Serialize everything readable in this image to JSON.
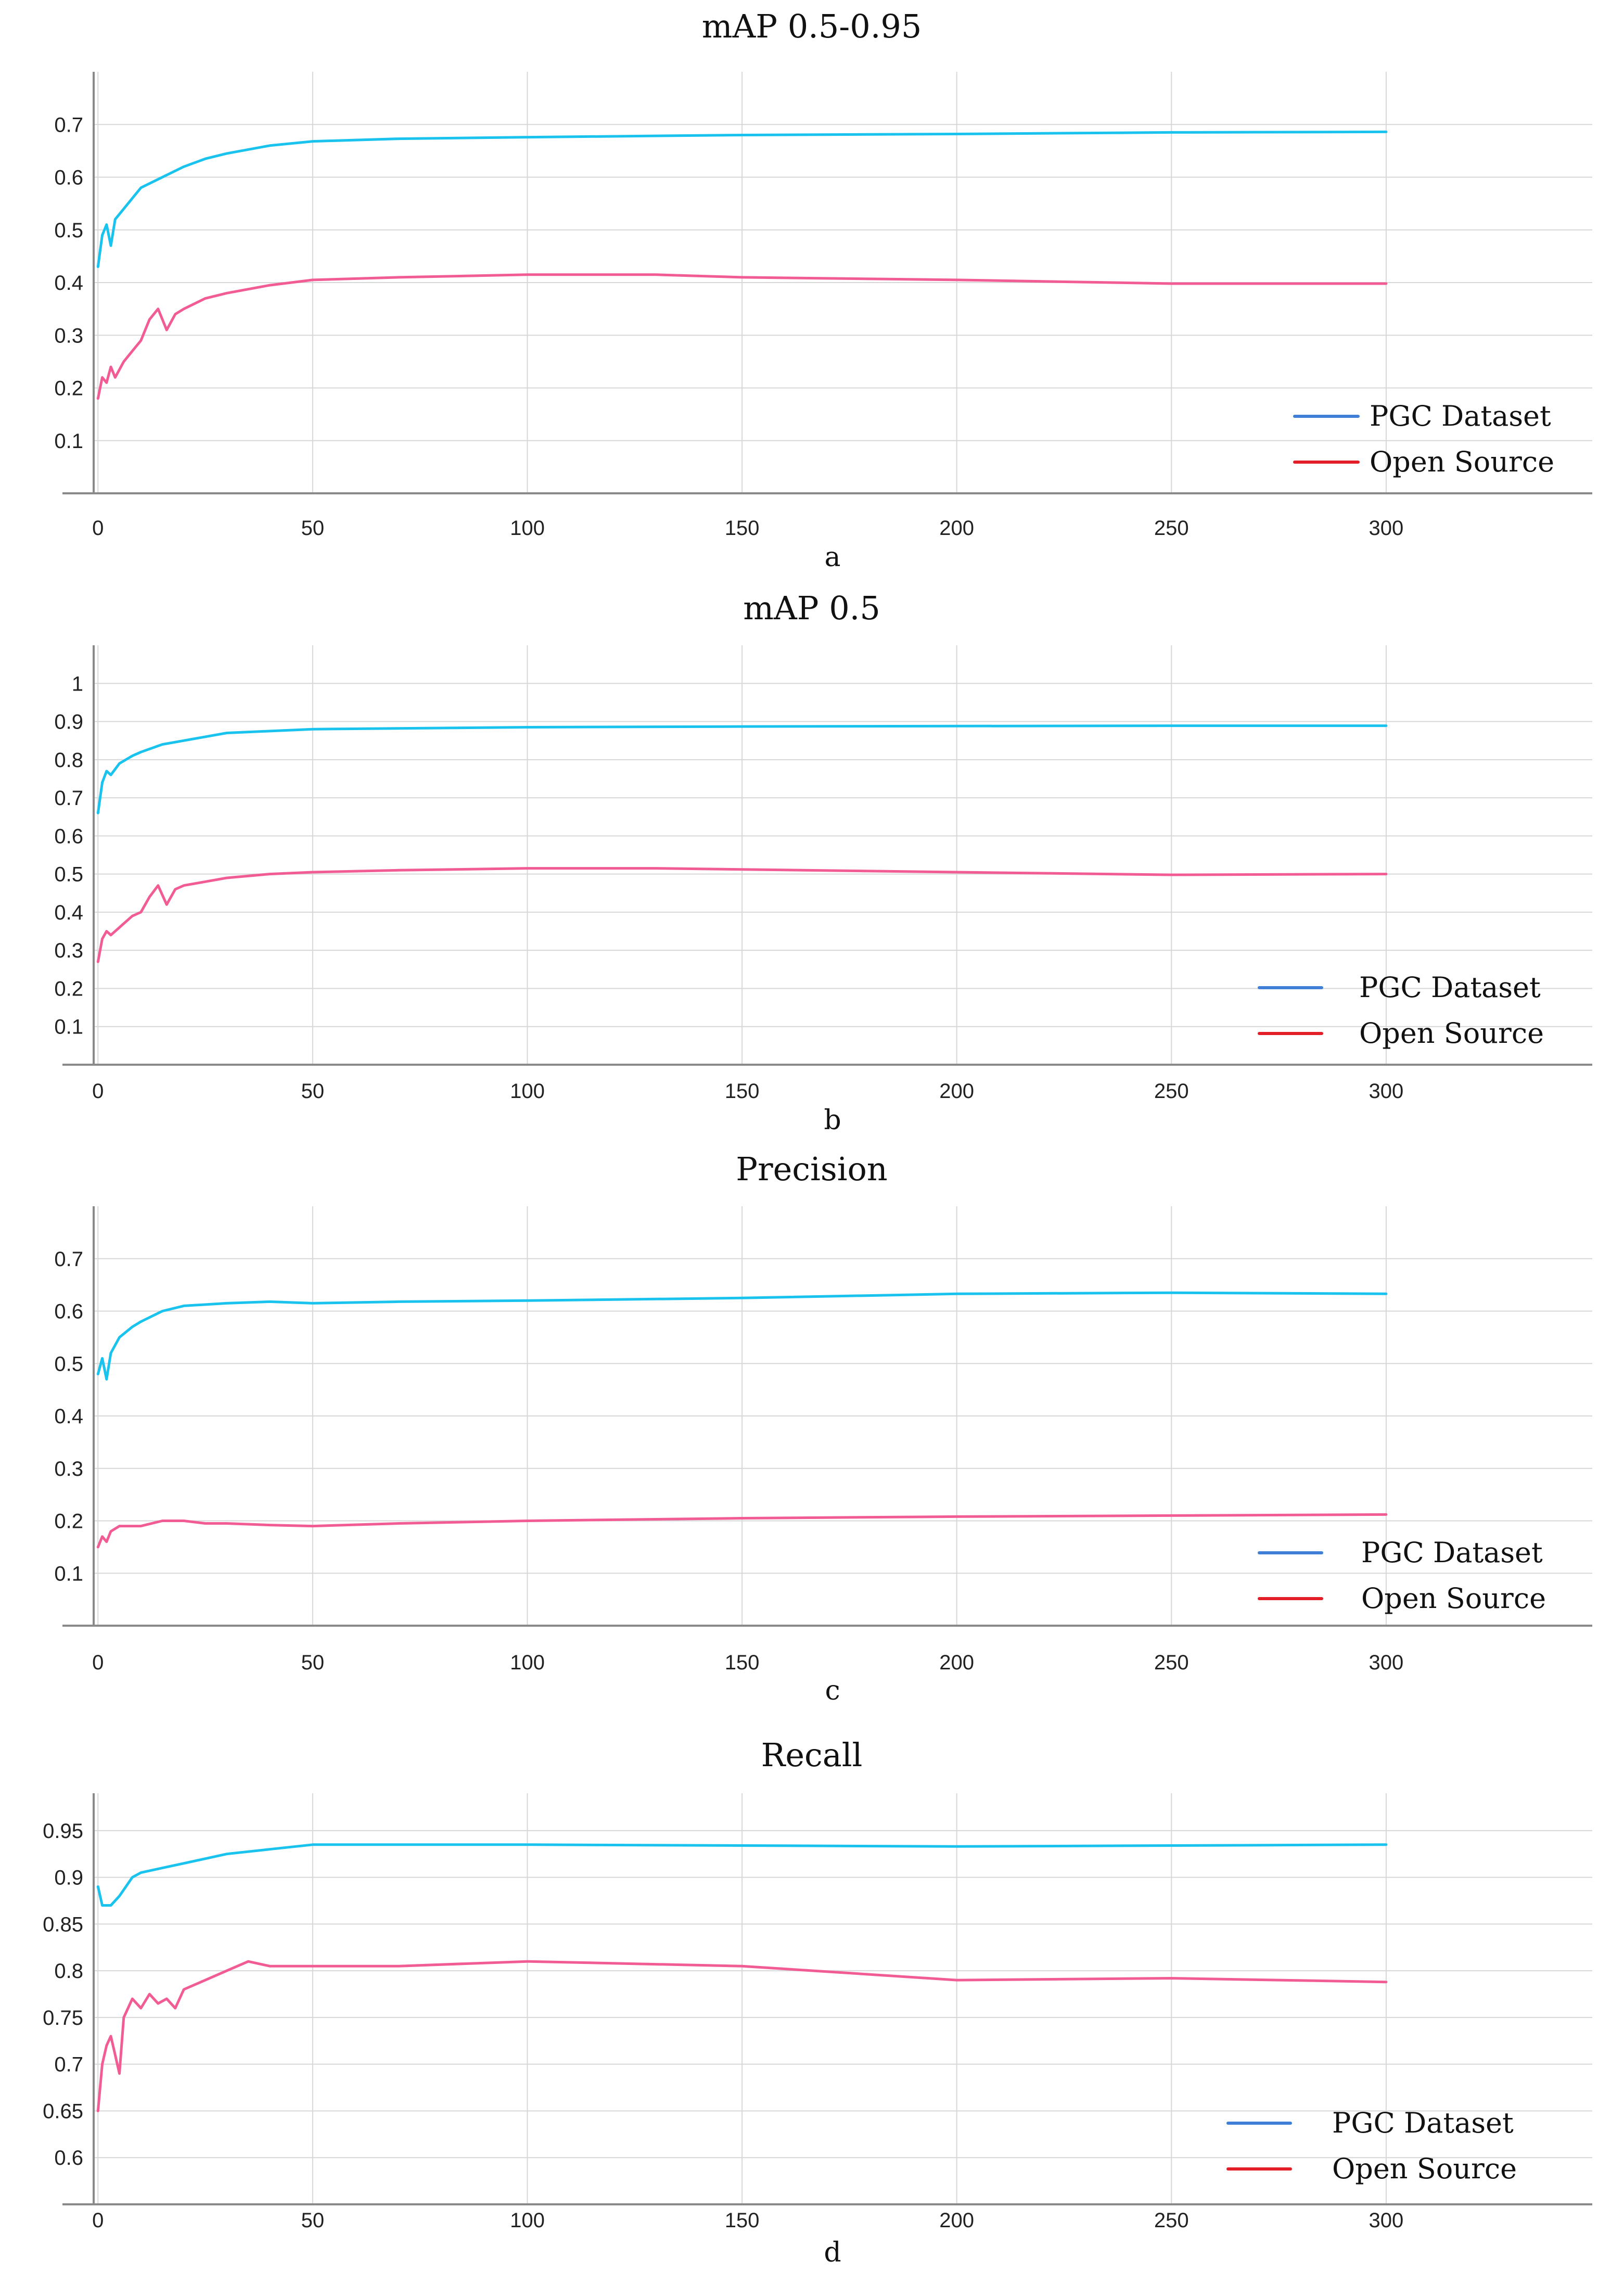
{
  "figure": {
    "panels": [
      "a",
      "b",
      "c",
      "d"
    ]
  },
  "chart_data": [
    {
      "type": "line",
      "title": "mAP 0.5-0.95",
      "sublabel": "a",
      "x_ticks": [
        0,
        50,
        100,
        150,
        200,
        250,
        300
      ],
      "y_ticks": [
        0.1,
        0.2,
        0.3,
        0.4,
        0.5,
        0.6,
        0.7
      ],
      "y_tick_labels": [
        "0.1",
        "0.2",
        "0.3",
        "0.4",
        "0.5",
        "0.6",
        "0.7"
      ],
      "xlim": [
        -1,
        348
      ],
      "ylim": [
        0.0,
        0.8
      ],
      "legend": [
        "PGC Dataset",
        "Open Source"
      ],
      "legend_colors": [
        "#3f7fd8",
        "#e41e26"
      ],
      "series": [
        {
          "name": "PGC Dataset",
          "color": "#19c3ee",
          "points": [
            [
              0,
              0.43
            ],
            [
              1,
              0.49
            ],
            [
              2,
              0.51
            ],
            [
              3,
              0.47
            ],
            [
              4,
              0.52
            ],
            [
              6,
              0.54
            ],
            [
              8,
              0.56
            ],
            [
              10,
              0.58
            ],
            [
              15,
              0.6
            ],
            [
              20,
              0.62
            ],
            [
              25,
              0.635
            ],
            [
              30,
              0.645
            ],
            [
              40,
              0.66
            ],
            [
              50,
              0.668
            ],
            [
              70,
              0.673
            ],
            [
              100,
              0.676
            ],
            [
              150,
              0.68
            ],
            [
              200,
              0.682
            ],
            [
              250,
              0.685
            ],
            [
              300,
              0.686
            ]
          ]
        },
        {
          "name": "Open Source",
          "color": "#f25c94",
          "points": [
            [
              0,
              0.18
            ],
            [
              1,
              0.22
            ],
            [
              2,
              0.21
            ],
            [
              3,
              0.24
            ],
            [
              4,
              0.22
            ],
            [
              6,
              0.25
            ],
            [
              8,
              0.27
            ],
            [
              10,
              0.29
            ],
            [
              12,
              0.33
            ],
            [
              14,
              0.35
            ],
            [
              16,
              0.31
            ],
            [
              18,
              0.34
            ],
            [
              20,
              0.35
            ],
            [
              25,
              0.37
            ],
            [
              30,
              0.38
            ],
            [
              40,
              0.395
            ],
            [
              50,
              0.405
            ],
            [
              70,
              0.41
            ],
            [
              100,
              0.415
            ],
            [
              130,
              0.415
            ],
            [
              150,
              0.41
            ],
            [
              200,
              0.405
            ],
            [
              250,
              0.398
            ],
            [
              300,
              0.398
            ]
          ]
        }
      ]
    },
    {
      "type": "line",
      "title": "mAP 0.5",
      "sublabel": "b",
      "x_ticks": [
        0,
        50,
        100,
        150,
        200,
        250,
        300
      ],
      "y_ticks": [
        0.1,
        0.2,
        0.3,
        0.4,
        0.5,
        0.6,
        0.7,
        0.8,
        0.9,
        1.0
      ],
      "y_tick_labels": [
        "0.1",
        "0.2",
        "0.3",
        "0.4",
        "0.5",
        "0.6",
        "0.7",
        "0.8",
        "0.9",
        "1"
      ],
      "xlim": [
        -1,
        348
      ],
      "ylim": [
        0.0,
        1.1
      ],
      "legend": [
        "PGC Dataset",
        "Open Source"
      ],
      "legend_colors": [
        "#3f7fd8",
        "#e41e26"
      ],
      "series": [
        {
          "name": "PGC Dataset",
          "color": "#19c3ee",
          "points": [
            [
              0,
              0.66
            ],
            [
              1,
              0.74
            ],
            [
              2,
              0.77
            ],
            [
              3,
              0.76
            ],
            [
              5,
              0.79
            ],
            [
              8,
              0.81
            ],
            [
              10,
              0.82
            ],
            [
              15,
              0.84
            ],
            [
              20,
              0.85
            ],
            [
              30,
              0.87
            ],
            [
              40,
              0.875
            ],
            [
              50,
              0.88
            ],
            [
              100,
              0.885
            ],
            [
              150,
              0.887
            ],
            [
              200,
              0.888
            ],
            [
              250,
              0.889
            ],
            [
              300,
              0.889
            ]
          ]
        },
        {
          "name": "Open Source",
          "color": "#f25c94",
          "points": [
            [
              0,
              0.27
            ],
            [
              1,
              0.33
            ],
            [
              2,
              0.35
            ],
            [
              3,
              0.34
            ],
            [
              5,
              0.36
            ],
            [
              8,
              0.39
            ],
            [
              10,
              0.4
            ],
            [
              12,
              0.44
            ],
            [
              14,
              0.47
            ],
            [
              16,
              0.42
            ],
            [
              18,
              0.46
            ],
            [
              20,
              0.47
            ],
            [
              25,
              0.48
            ],
            [
              30,
              0.49
            ],
            [
              40,
              0.5
            ],
            [
              50,
              0.505
            ],
            [
              70,
              0.51
            ],
            [
              100,
              0.515
            ],
            [
              130,
              0.515
            ],
            [
              150,
              0.512
            ],
            [
              200,
              0.505
            ],
            [
              250,
              0.498
            ],
            [
              300,
              0.5
            ]
          ]
        }
      ]
    },
    {
      "type": "line",
      "title": "Precision",
      "sublabel": "c",
      "x_ticks": [
        0,
        50,
        100,
        150,
        200,
        250,
        300
      ],
      "y_ticks": [
        0.1,
        0.2,
        0.3,
        0.4,
        0.5,
        0.6,
        0.7
      ],
      "y_tick_labels": [
        "0.1",
        "0.2",
        "0.3",
        "0.4",
        "0.5",
        "0.6",
        "0.7"
      ],
      "xlim": [
        -1,
        348
      ],
      "ylim": [
        0.0,
        0.8
      ],
      "legend": [
        "PGC Dataset",
        "Open Source"
      ],
      "legend_colors": [
        "#3f7fd8",
        "#e41e26"
      ],
      "series": [
        {
          "name": "PGC Dataset",
          "color": "#19c3ee",
          "points": [
            [
              0,
              0.48
            ],
            [
              1,
              0.51
            ],
            [
              2,
              0.47
            ],
            [
              3,
              0.52
            ],
            [
              5,
              0.55
            ],
            [
              8,
              0.57
            ],
            [
              10,
              0.58
            ],
            [
              15,
              0.6
            ],
            [
              20,
              0.61
            ],
            [
              30,
              0.615
            ],
            [
              40,
              0.618
            ],
            [
              50,
              0.615
            ],
            [
              70,
              0.618
            ],
            [
              100,
              0.62
            ],
            [
              150,
              0.625
            ],
            [
              200,
              0.633
            ],
            [
              250,
              0.635
            ],
            [
              300,
              0.633
            ]
          ]
        },
        {
          "name": "Open Source",
          "color": "#f25c94",
          "points": [
            [
              0,
              0.15
            ],
            [
              1,
              0.17
            ],
            [
              2,
              0.16
            ],
            [
              3,
              0.18
            ],
            [
              5,
              0.19
            ],
            [
              10,
              0.19
            ],
            [
              15,
              0.2
            ],
            [
              20,
              0.2
            ],
            [
              25,
              0.195
            ],
            [
              30,
              0.195
            ],
            [
              40,
              0.192
            ],
            [
              50,
              0.19
            ],
            [
              70,
              0.195
            ],
            [
              100,
              0.2
            ],
            [
              150,
              0.205
            ],
            [
              200,
              0.208
            ],
            [
              250,
              0.21
            ],
            [
              300,
              0.212
            ]
          ]
        }
      ]
    },
    {
      "type": "line",
      "title": "Recall",
      "sublabel": "d",
      "x_ticks": [
        0,
        50,
        100,
        150,
        200,
        250,
        300
      ],
      "y_ticks": [
        0.6,
        0.65,
        0.7,
        0.75,
        0.8,
        0.85,
        0.9,
        0.95
      ],
      "y_tick_labels": [
        "0.6",
        "0.65",
        "0.7",
        "0.75",
        "0.8",
        "0.85",
        "0.9",
        "0.95"
      ],
      "xlim": [
        -1,
        348
      ],
      "ylim": [
        0.55,
        0.99
      ],
      "legend": [
        "PGC Dataset",
        "Open Source"
      ],
      "legend_colors": [
        "#3f7fd8",
        "#e41e26"
      ],
      "series": [
        {
          "name": "PGC Dataset",
          "color": "#19c3ee",
          "points": [
            [
              0,
              0.89
            ],
            [
              1,
              0.87
            ],
            [
              2,
              0.87
            ],
            [
              3,
              0.87
            ],
            [
              5,
              0.88
            ],
            [
              8,
              0.9
            ],
            [
              10,
              0.905
            ],
            [
              15,
              0.91
            ],
            [
              20,
              0.915
            ],
            [
              30,
              0.925
            ],
            [
              40,
              0.93
            ],
            [
              50,
              0.935
            ],
            [
              70,
              0.935
            ],
            [
              100,
              0.935
            ],
            [
              150,
              0.934
            ],
            [
              200,
              0.933
            ],
            [
              250,
              0.934
            ],
            [
              300,
              0.935
            ]
          ]
        },
        {
          "name": "Open Source",
          "color": "#f25c94",
          "points": [
            [
              0,
              0.65
            ],
            [
              1,
              0.7
            ],
            [
              2,
              0.72
            ],
            [
              3,
              0.73
            ],
            [
              4,
              0.71
            ],
            [
              5,
              0.69
            ],
            [
              6,
              0.75
            ],
            [
              8,
              0.77
            ],
            [
              10,
              0.76
            ],
            [
              12,
              0.775
            ],
            [
              14,
              0.765
            ],
            [
              16,
              0.77
            ],
            [
              18,
              0.76
            ],
            [
              20,
              0.78
            ],
            [
              25,
              0.79
            ],
            [
              30,
              0.8
            ],
            [
              35,
              0.81
            ],
            [
              40,
              0.805
            ],
            [
              50,
              0.805
            ],
            [
              70,
              0.805
            ],
            [
              100,
              0.81
            ],
            [
              150,
              0.805
            ],
            [
              200,
              0.79
            ],
            [
              250,
              0.792
            ],
            [
              300,
              0.788
            ]
          ]
        }
      ]
    }
  ]
}
